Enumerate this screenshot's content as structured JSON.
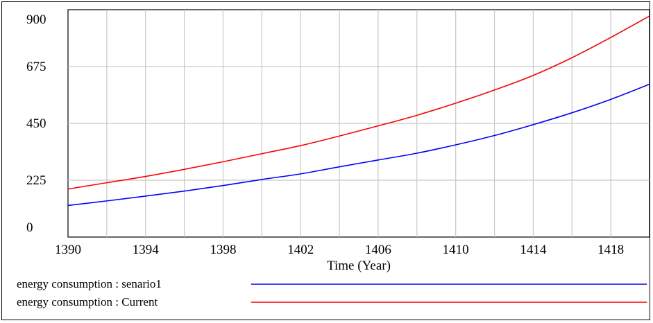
{
  "chart_data": {
    "type": "line",
    "xlabel": "Time (Year)",
    "ylabel": "",
    "xlim": [
      1390,
      1420
    ],
    "ylim": [
      0,
      900
    ],
    "x_ticks": [
      "1390",
      "1394",
      "1398",
      "1402",
      "1406",
      "1410",
      "1414",
      "1418"
    ],
    "y_ticks": [
      "900",
      "675",
      "450",
      "225",
      "0"
    ],
    "grid": true,
    "legend_position": "bottom",
    "x": [
      1390,
      1392,
      1394,
      1396,
      1398,
      1400,
      1402,
      1404,
      1406,
      1408,
      1410,
      1412,
      1414,
      1416,
      1418,
      1420
    ],
    "series": [
      {
        "name": "energy consumption : senario1",
        "color": "#0000ff",
        "values": [
          125,
          143,
          162,
          182,
          204,
          228,
          250,
          278,
          305,
          332,
          365,
          402,
          445,
          492,
          545,
          605
        ]
      },
      {
        "name": "energy consumption : Current",
        "color": "#ff0000",
        "values": [
          190,
          215,
          240,
          268,
          298,
          330,
          362,
          400,
          440,
          482,
          530,
          582,
          640,
          710,
          790,
          875
        ]
      }
    ]
  }
}
